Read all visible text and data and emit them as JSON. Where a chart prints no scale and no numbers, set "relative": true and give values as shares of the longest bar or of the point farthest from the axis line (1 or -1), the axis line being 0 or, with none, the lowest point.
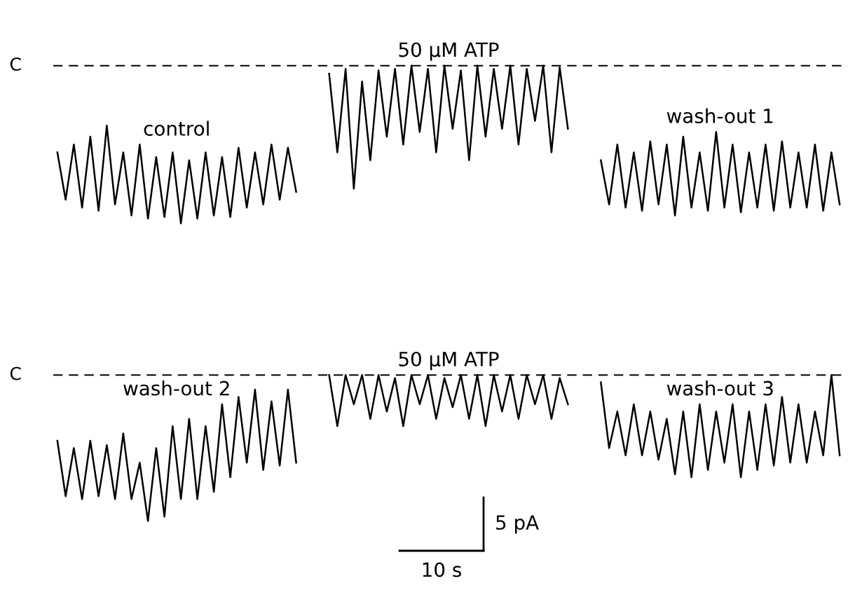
{
  "chart_data": [
    {
      "type": "line",
      "relative": true,
      "legend": false,
      "categories": [
        null,
        null,
        null,
        null,
        null,
        null,
        null,
        null,
        null,
        null,
        null,
        null,
        null,
        null,
        null,
        null,
        null,
        null,
        null,
        null,
        null,
        null,
        null,
        null,
        null,
        null,
        null,
        null,
        null,
        null,
        null,
        null,
        null,
        null,
        null,
        null,
        null,
        null,
        null,
        null,
        null,
        null,
        null,
        null,
        null,
        null,
        null,
        null,
        null,
        null,
        null,
        null,
        null,
        null,
        null,
        null,
        null,
        null,
        null,
        null,
        null,
        null,
        null,
        null,
        null,
        null,
        null,
        null,
        null,
        null,
        null,
        null,
        null,
        null,
        null,
        null,
        null,
        null,
        null,
        null,
        null,
        null,
        null,
        null,
        null,
        null,
        null,
        null,
        null,
        null,
        null,
        null,
        null,
        null,
        null,
        null
      ],
      "ref_lines": [
        {
          "axis": "y",
          "value": 0,
          "label": "C",
          "color": "#000000",
          "line_style": "dashed"
        }
      ],
      "series": [
        {
          "name": "control",
          "color": "#000000",
          "values": [
            -0.55,
            -0.85,
            -0.5,
            -0.9,
            -0.45,
            -0.92,
            -0.38,
            -0.88,
            -0.55,
            -0.95,
            -0.5,
            -0.97,
            -0.58,
            -0.96,
            -0.55,
            -1.0,
            -0.6,
            -0.97,
            -0.55,
            -0.95,
            -0.58,
            -0.96,
            -0.52,
            -0.9,
            -0.55,
            -0.88,
            -0.5,
            -0.85,
            -0.52,
            -0.8,
            null,
            null,
            null,
            null,
            null,
            null,
            null,
            null,
            null,
            null,
            null,
            null,
            null,
            null,
            null,
            null,
            null,
            null,
            null,
            null,
            null,
            null,
            null,
            null,
            null,
            null,
            null,
            null,
            null,
            null,
            null,
            null,
            null,
            null,
            null,
            null,
            null,
            null,
            null,
            null,
            null,
            null,
            null,
            null,
            null,
            null,
            null,
            null,
            null,
            null,
            null,
            null,
            null,
            null,
            null,
            null,
            null,
            null,
            null,
            null,
            null,
            null,
            null,
            null,
            null,
            null
          ]
        },
        {
          "name": "50 μM ATP",
          "color": "#000000",
          "values": [
            null,
            null,
            null,
            null,
            null,
            null,
            null,
            null,
            null,
            null,
            null,
            null,
            null,
            null,
            null,
            null,
            null,
            null,
            null,
            null,
            null,
            null,
            null,
            null,
            null,
            null,
            null,
            null,
            null,
            null,
            null,
            null,
            null,
            -0.05,
            -0.55,
            -0.02,
            -0.78,
            -0.1,
            -0.6,
            -0.03,
            -0.45,
            -0.02,
            -0.5,
            0,
            -0.42,
            -0.02,
            -0.55,
            0,
            -0.4,
            -0.03,
            -0.6,
            0,
            -0.45,
            -0.02,
            -0.4,
            0,
            -0.5,
            -0.02,
            -0.35,
            0,
            -0.55,
            -0.01,
            -0.4,
            null,
            null,
            null,
            null,
            null,
            null,
            null,
            null,
            null,
            null,
            null,
            null,
            null,
            null,
            null,
            null,
            null,
            null,
            null,
            null,
            null,
            null,
            null,
            null,
            null,
            null,
            null,
            null,
            null,
            null,
            null,
            null,
            null
          ]
        },
        {
          "name": "wash-out 1",
          "color": "#000000",
          "values": [
            null,
            null,
            null,
            null,
            null,
            null,
            null,
            null,
            null,
            null,
            null,
            null,
            null,
            null,
            null,
            null,
            null,
            null,
            null,
            null,
            null,
            null,
            null,
            null,
            null,
            null,
            null,
            null,
            null,
            null,
            null,
            null,
            null,
            null,
            null,
            null,
            null,
            null,
            null,
            null,
            null,
            null,
            null,
            null,
            null,
            null,
            null,
            null,
            null,
            null,
            null,
            null,
            null,
            null,
            null,
            null,
            null,
            null,
            null,
            null,
            null,
            null,
            null,
            null,
            null,
            null,
            -0.6,
            -0.88,
            -0.5,
            -0.9,
            -0.55,
            -0.92,
            -0.48,
            -0.88,
            -0.5,
            -0.95,
            -0.45,
            -0.9,
            -0.55,
            -0.92,
            -0.42,
            -0.9,
            -0.5,
            -0.93,
            -0.55,
            -0.9,
            -0.5,
            -0.92,
            -0.48,
            -0.9,
            -0.55,
            -0.9,
            -0.5,
            -0.92,
            -0.55,
            -0.88
          ]
        }
      ]
    },
    {
      "type": "line",
      "relative": true,
      "legend": false,
      "categories": [
        null,
        null,
        null,
        null,
        null,
        null,
        null,
        null,
        null,
        null,
        null,
        null,
        null,
        null,
        null,
        null,
        null,
        null,
        null,
        null,
        null,
        null,
        null,
        null,
        null,
        null,
        null,
        null,
        null,
        null,
        null,
        null,
        null,
        null,
        null,
        null,
        null,
        null,
        null,
        null,
        null,
        null,
        null,
        null,
        null,
        null,
        null,
        null,
        null,
        null,
        null,
        null,
        null,
        null,
        null,
        null,
        null,
        null,
        null,
        null,
        null,
        null,
        null,
        null,
        null,
        null,
        null,
        null,
        null,
        null,
        null,
        null,
        null,
        null,
        null,
        null,
        null,
        null,
        null,
        null,
        null,
        null,
        null,
        null,
        null,
        null,
        null,
        null,
        null,
        null,
        null,
        null,
        null,
        null,
        null,
        null
      ],
      "ref_lines": [
        {
          "axis": "y",
          "value": 0,
          "label": "C",
          "color": "#000000",
          "line_style": "dashed"
        }
      ],
      "annotations": [
        "5 pA",
        "10 s"
      ],
      "series": [
        {
          "name": "wash-out 2",
          "color": "#000000",
          "values": [
            -0.45,
            -0.83,
            -0.5,
            -0.85,
            -0.45,
            -0.83,
            -0.48,
            -0.85,
            -0.4,
            -0.85,
            -0.6,
            -1.0,
            -0.5,
            -0.97,
            -0.35,
            -0.85,
            -0.3,
            -0.85,
            -0.35,
            -0.8,
            -0.2,
            -0.7,
            -0.15,
            -0.6,
            -0.1,
            -0.65,
            -0.18,
            -0.62,
            -0.1,
            -0.6,
            null,
            null,
            null,
            null,
            null,
            null,
            null,
            null,
            null,
            null,
            null,
            null,
            null,
            null,
            null,
            null,
            null,
            null,
            null,
            null,
            null,
            null,
            null,
            null,
            null,
            null,
            null,
            null,
            null,
            null,
            null,
            null,
            null,
            null,
            null,
            null,
            null,
            null,
            null,
            null,
            null,
            null,
            null,
            null,
            null,
            null,
            null,
            null,
            null,
            null,
            null,
            null,
            null,
            null,
            null,
            null,
            null,
            null,
            null,
            null,
            null,
            null,
            null,
            null,
            null,
            null
          ]
        },
        {
          "name": "50 μM ATP",
          "color": "#000000",
          "values": [
            null,
            null,
            null,
            null,
            null,
            null,
            null,
            null,
            null,
            null,
            null,
            null,
            null,
            null,
            null,
            null,
            null,
            null,
            null,
            null,
            null,
            null,
            null,
            null,
            null,
            null,
            null,
            null,
            null,
            null,
            null,
            null,
            null,
            0,
            -0.35,
            0,
            -0.2,
            0,
            -0.3,
            0,
            -0.25,
            -0.02,
            -0.35,
            0,
            -0.2,
            0,
            -0.3,
            -0.02,
            -0.22,
            0,
            -0.3,
            0,
            -0.35,
            0,
            -0.25,
            0,
            -0.3,
            0,
            -0.2,
            0,
            -0.3,
            -0.02,
            -0.2,
            null,
            null,
            null,
            null,
            null,
            null,
            null,
            null,
            null,
            null,
            null,
            null,
            null,
            null,
            null,
            null,
            null,
            null,
            null,
            null,
            null,
            null,
            null,
            null,
            null,
            null,
            null,
            null,
            null,
            null,
            null,
            null,
            null
          ]
        },
        {
          "name": "wash-out 3",
          "color": "#000000",
          "values": [
            null,
            null,
            null,
            null,
            null,
            null,
            null,
            null,
            null,
            null,
            null,
            null,
            null,
            null,
            null,
            null,
            null,
            null,
            null,
            null,
            null,
            null,
            null,
            null,
            null,
            null,
            null,
            null,
            null,
            null,
            null,
            null,
            null,
            null,
            null,
            null,
            null,
            null,
            null,
            null,
            null,
            null,
            null,
            null,
            null,
            null,
            null,
            null,
            null,
            null,
            null,
            null,
            null,
            null,
            null,
            null,
            null,
            null,
            null,
            null,
            null,
            null,
            null,
            null,
            null,
            null,
            -0.05,
            -0.5,
            -0.25,
            -0.55,
            -0.2,
            -0.55,
            -0.25,
            -0.58,
            -0.3,
            -0.68,
            -0.25,
            -0.7,
            -0.2,
            -0.65,
            -0.25,
            -0.6,
            -0.2,
            -0.7,
            -0.25,
            -0.65,
            -0.2,
            -0.62,
            -0.15,
            -0.6,
            -0.2,
            -0.6,
            -0.25,
            -0.55,
            0,
            -0.55
          ]
        }
      ]
    }
  ]
}
